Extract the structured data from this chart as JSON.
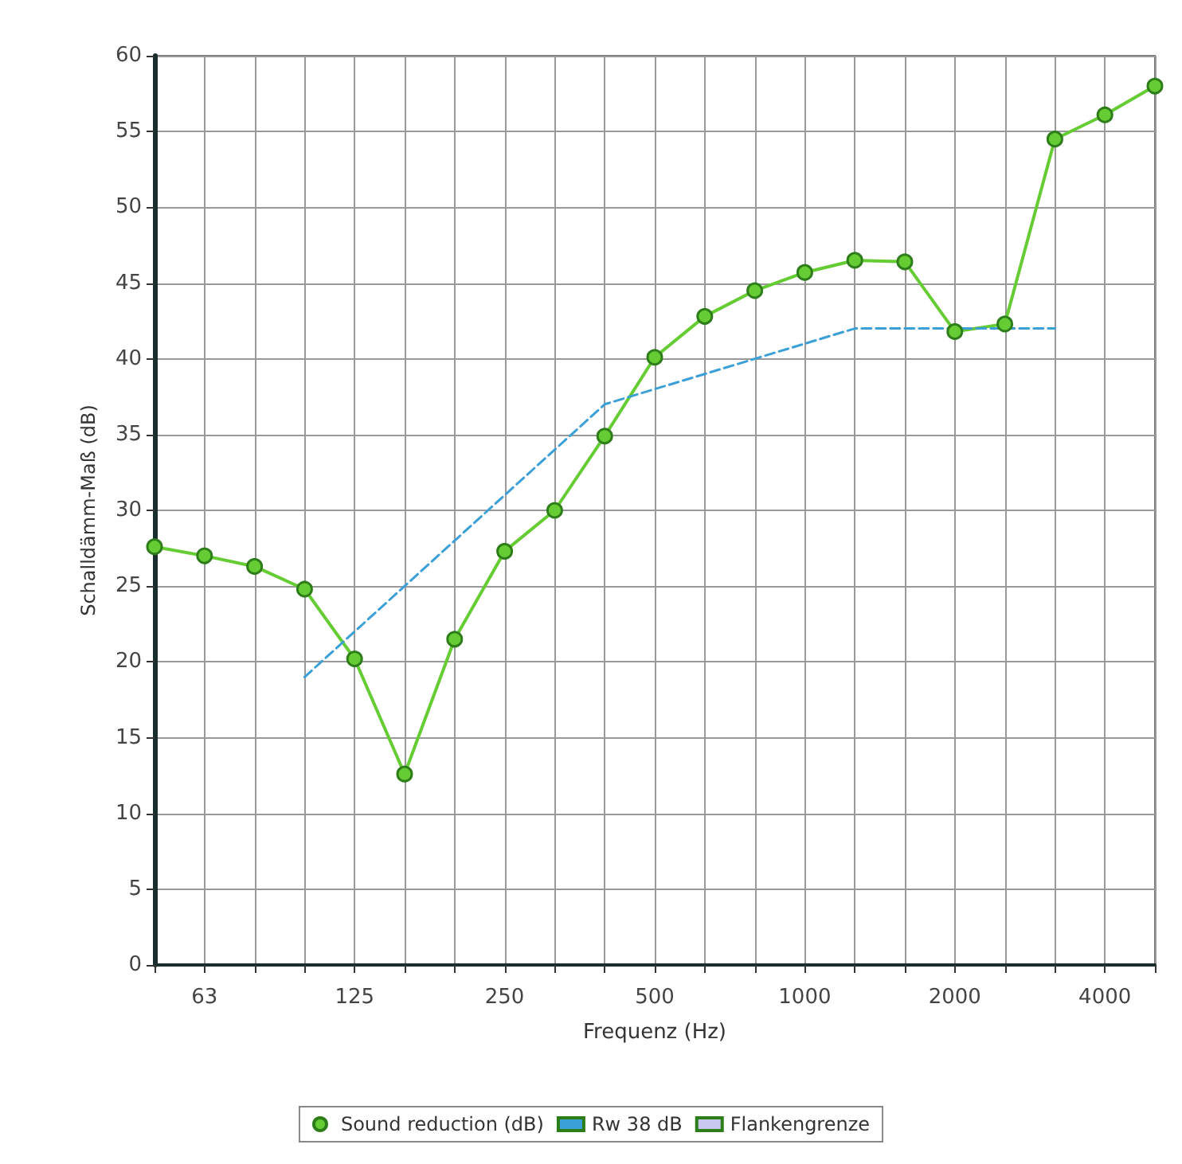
{
  "chart_data": {
    "type": "line",
    "xlabel": "Frequenz (Hz)",
    "ylabel": "Schalldämm-Maß (dB)",
    "categories": [
      null,
      "63",
      null,
      null,
      "125",
      null,
      null,
      "250",
      null,
      null,
      "500",
      null,
      null,
      "1000",
      null,
      null,
      "2000",
      null,
      null,
      "4000",
      null
    ],
    "series": [
      {
        "name": "Sound reduction (dB)",
        "color": "#66cc33",
        "marker": "circle",
        "line_style": "solid",
        "values": [
          27.6,
          27.0,
          26.3,
          24.8,
          20.2,
          12.6,
          21.5,
          27.3,
          30.0,
          34.9,
          40.1,
          42.8,
          44.5,
          45.7,
          46.5,
          46.4,
          41.8,
          42.3,
          54.5,
          56.1,
          58.0
        ]
      },
      {
        "name": "Rw 38 dB",
        "color": "#3ba0d8",
        "marker": "none",
        "line_style": "dashed",
        "values": [
          null,
          null,
          null,
          19,
          22,
          25,
          28,
          31,
          34,
          37,
          38,
          39,
          40,
          41,
          42,
          42,
          42,
          42,
          42,
          null,
          null
        ]
      },
      {
        "name": "Flankengrenze",
        "color": "#c8c8f0",
        "marker": "none",
        "line_style": "solid",
        "values": [
          null,
          null,
          null,
          null,
          null,
          null,
          null,
          null,
          null,
          null,
          null,
          null,
          null,
          null,
          null,
          null,
          null,
          null,
          null,
          null,
          null
        ]
      }
    ],
    "ylim": [
      0,
      60
    ],
    "yticks": [
      0,
      5,
      10,
      15,
      20,
      25,
      30,
      35,
      40,
      45,
      50,
      55,
      60
    ],
    "grid": true,
    "legend": "bottom"
  }
}
